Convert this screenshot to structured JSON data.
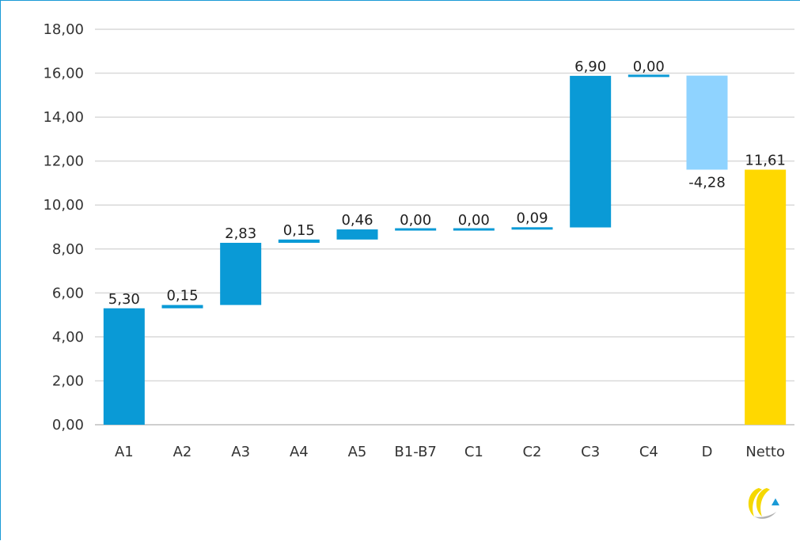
{
  "chart_data": {
    "type": "bar",
    "subtype": "waterfall",
    "categories": [
      "A1",
      "A2",
      "A3",
      "A4",
      "A5",
      "B1-B7",
      "C1",
      "C2",
      "C3",
      "C4",
      "D",
      "Netto"
    ],
    "steps": [
      {
        "category": "A1",
        "start": 0.0,
        "value": 5.3,
        "label": "5,30"
      },
      {
        "category": "A2",
        "start": 5.3,
        "value": 0.15,
        "label": "0,15"
      },
      {
        "category": "A3",
        "start": 5.45,
        "value": 2.83,
        "label": "2,83"
      },
      {
        "category": "A4",
        "start": 8.28,
        "value": 0.15,
        "label": "0,15"
      },
      {
        "category": "A5",
        "start": 8.43,
        "value": 0.46,
        "label": "0,46"
      },
      {
        "category": "B1-B7",
        "start": 8.89,
        "value": 0.0,
        "label": "0,00"
      },
      {
        "category": "C1",
        "start": 8.89,
        "value": 0.0,
        "label": "0,00"
      },
      {
        "category": "C2",
        "start": 8.89,
        "value": 0.09,
        "label": "0,09"
      },
      {
        "category": "C3",
        "start": 8.98,
        "value": 6.9,
        "label": "6,90"
      },
      {
        "category": "C4",
        "start": 15.88,
        "value": 0.0,
        "label": "0,00"
      },
      {
        "category": "D",
        "start": 15.89,
        "value": -4.28,
        "label": "-4,28"
      },
      {
        "category": "Netto",
        "start": 0.0,
        "value": 11.61,
        "label": "11,61",
        "total": true
      }
    ],
    "ylim": [
      0,
      18
    ],
    "yticks": [
      "0,00",
      "2,00",
      "4,00",
      "6,00",
      "8,00",
      "10,00",
      "12,00",
      "14,00",
      "16,00",
      "18,00"
    ],
    "grid": true,
    "colors": {
      "increase": "#0a9ad6",
      "decrease": "#8fd3ff",
      "total": "#ffd800",
      "grid": "#d9d9d9",
      "axis": "#bfbfbf",
      "frame": "#1a9ad6"
    }
  },
  "logo": {
    "icon": "company-logo-icon",
    "colors": [
      "#f5d800",
      "#b0b0b0",
      "#1a9ad6"
    ]
  }
}
